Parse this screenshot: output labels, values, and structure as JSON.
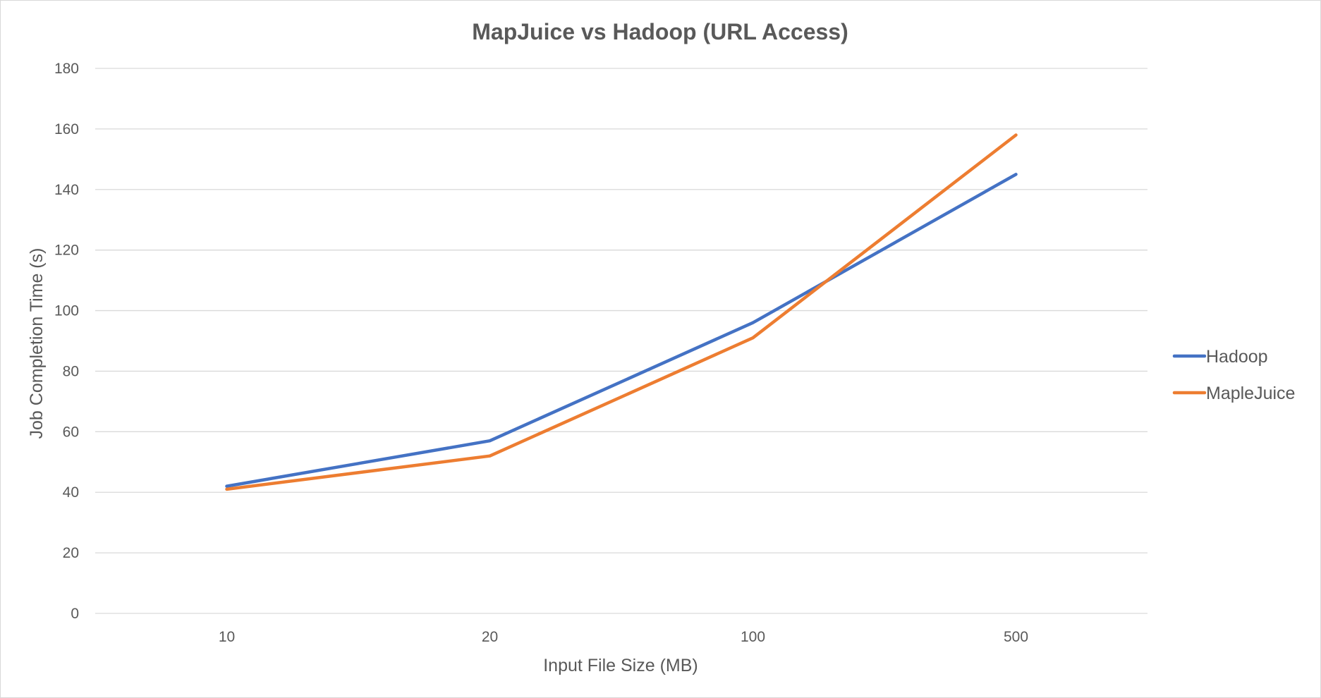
{
  "chart_data": {
    "type": "line",
    "title": "MapJuice vs Hadoop (URL Access)",
    "xlabel": "Input File Size (MB)",
    "ylabel": "Job Completion Time (s)",
    "categories": [
      "10",
      "20",
      "100",
      "500"
    ],
    "ylim": [
      0,
      180
    ],
    "yticks": [
      "0",
      "20",
      "40",
      "60",
      "80",
      "100",
      "120",
      "140",
      "160",
      "180"
    ],
    "grid": true,
    "legend_position": "right",
    "series": [
      {
        "name": "Hadoop",
        "color": "#4472c4",
        "values": [
          42,
          57,
          96,
          145
        ]
      },
      {
        "name": "MapleJuice",
        "color": "#ed7d31",
        "values": [
          41,
          52,
          91,
          158
        ]
      }
    ]
  }
}
